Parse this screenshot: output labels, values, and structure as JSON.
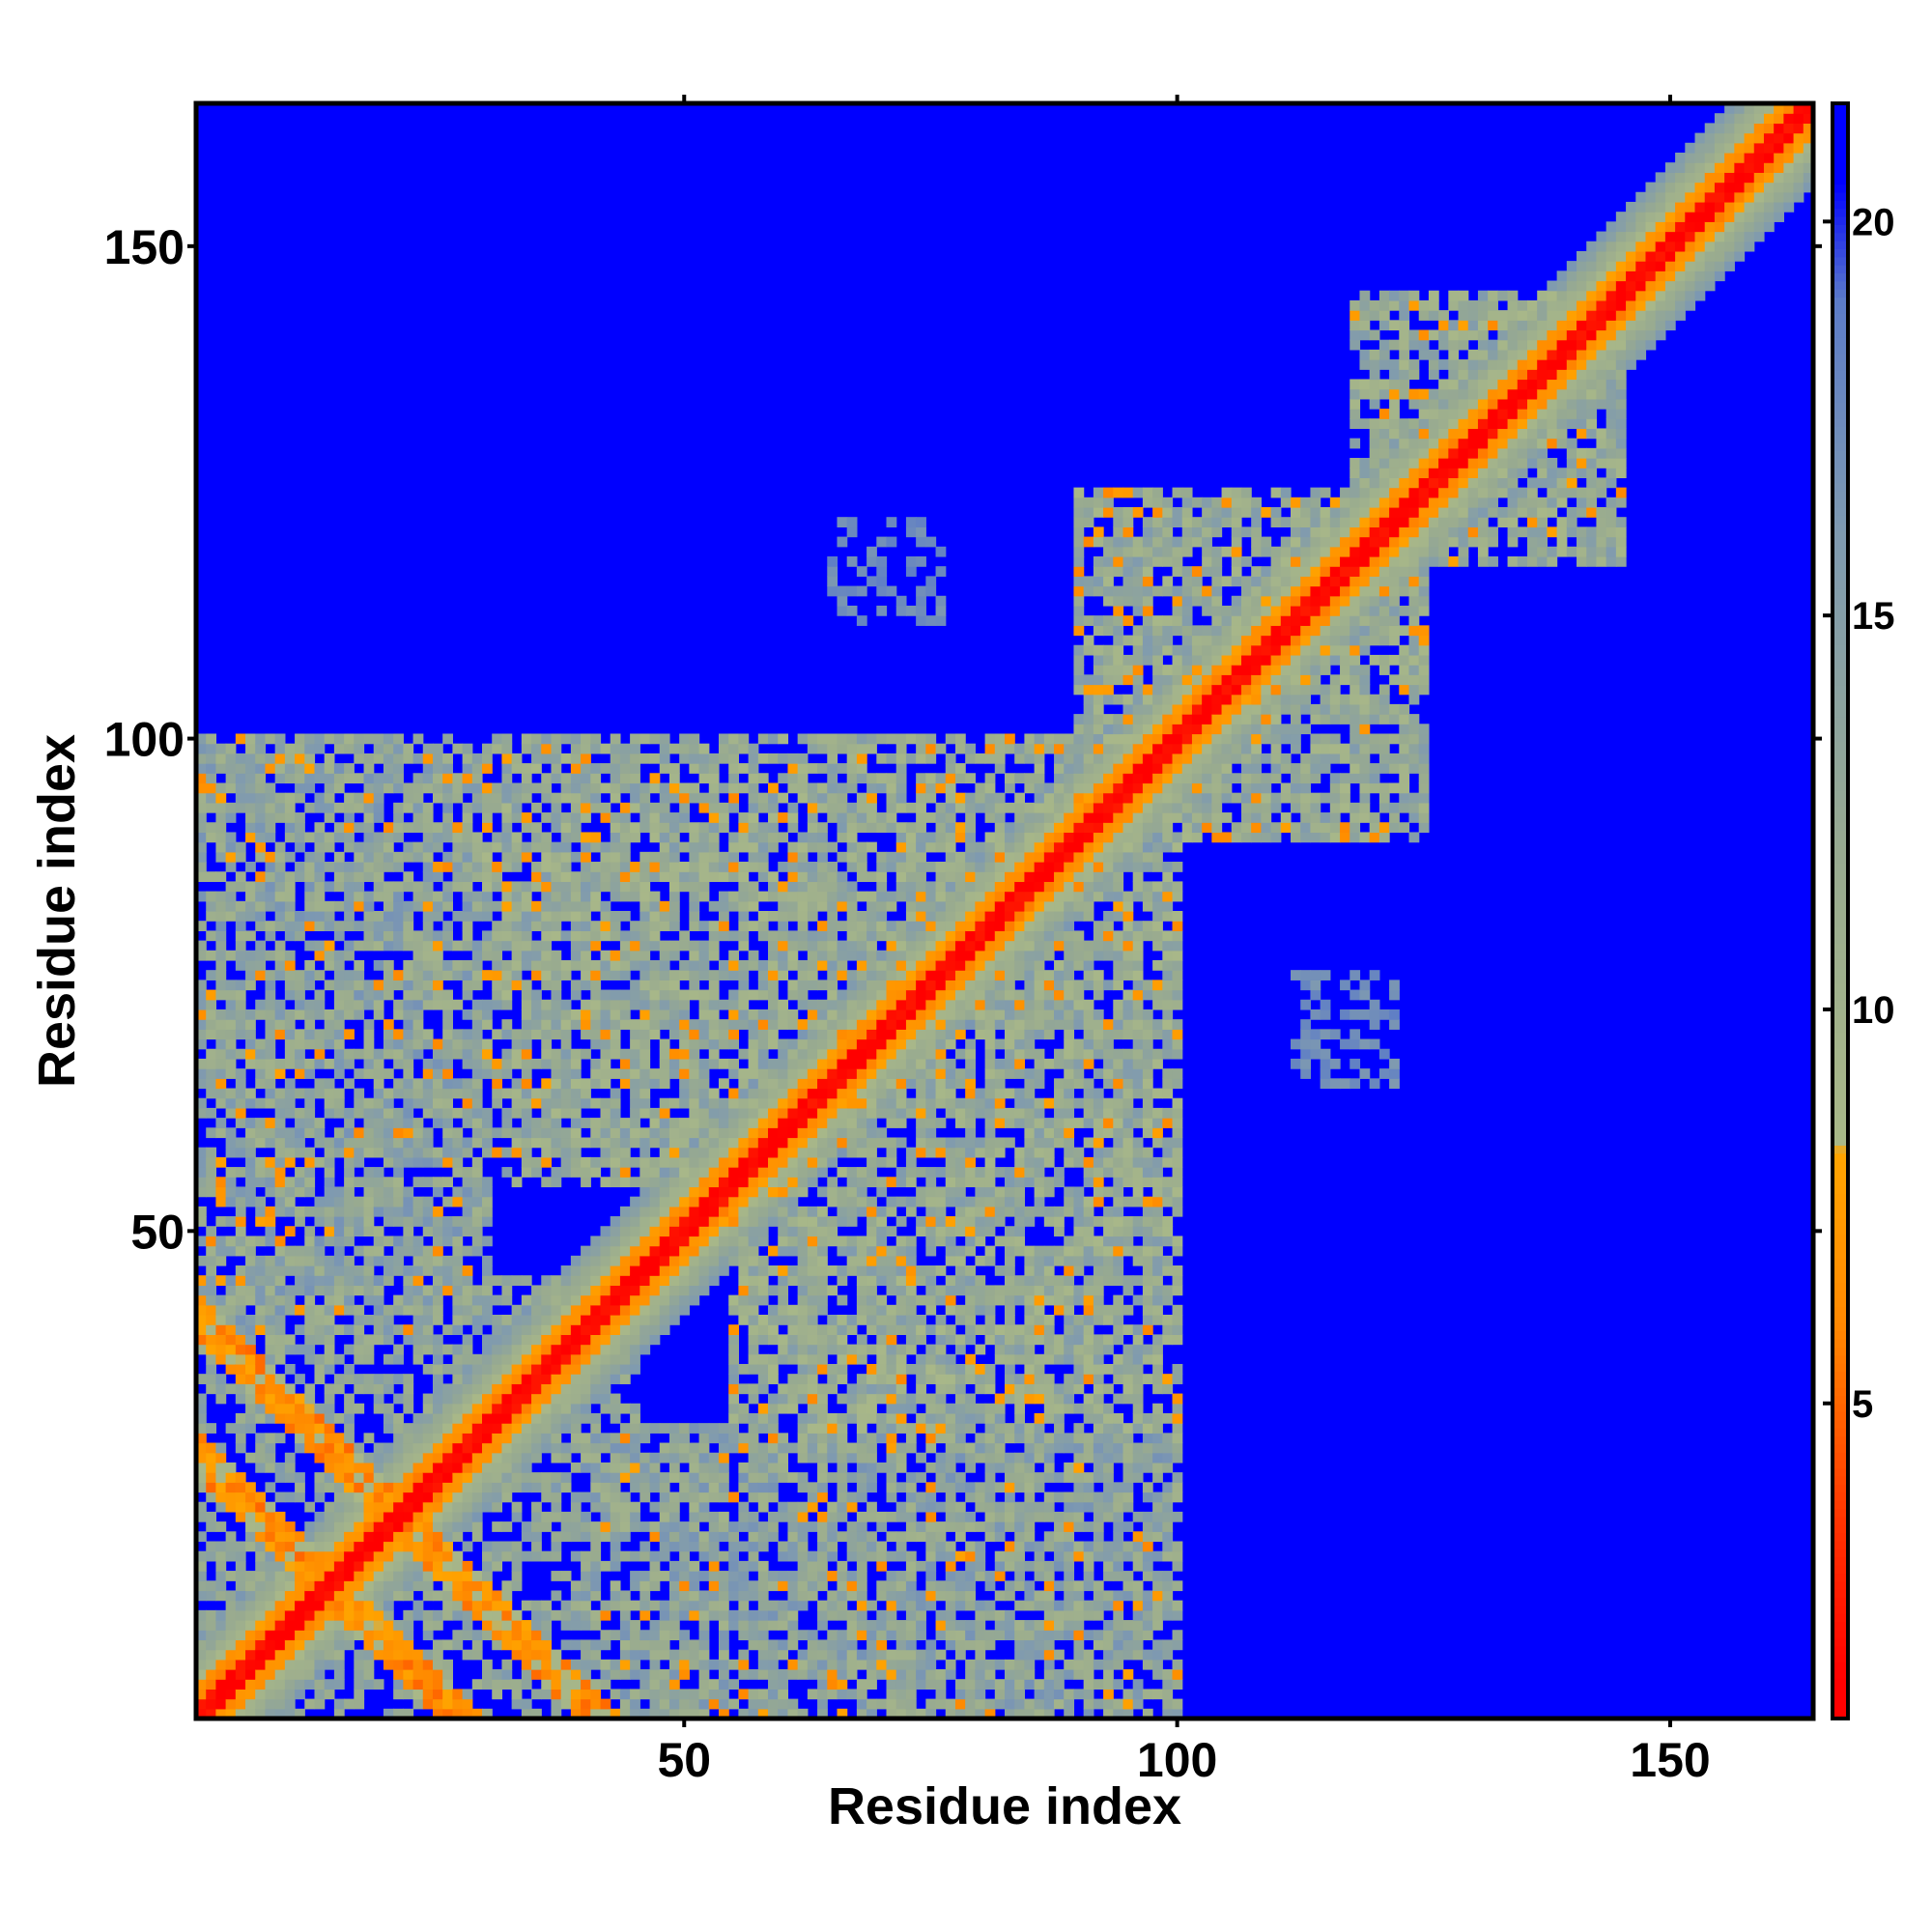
{
  "chart_data": {
    "type": "heatmap",
    "title": "",
    "xlabel": "Residue index",
    "ylabel": "Residue index",
    "xlim": [
      1,
      164
    ],
    "ylim": [
      1,
      164
    ],
    "n_residues": 164,
    "x_ticks": [
      50,
      100,
      150
    ],
    "y_ticks": [
      50,
      100,
      150
    ],
    "colorbar": {
      "ticks": [
        5,
        10,
        15,
        20
      ],
      "range": [
        1,
        21.5
      ],
      "stops": [
        {
          "value": 1.5,
          "color": "#ff0000"
        },
        {
          "value": 3.5,
          "color": "#ff3300"
        },
        {
          "value": 6.0,
          "color": "#ff8800"
        },
        {
          "value": 8.2,
          "color": "#ffa500"
        },
        {
          "value": 8.3,
          "color": "#a9b888"
        },
        {
          "value": 12.0,
          "color": "#98aa90"
        },
        {
          "value": 16.0,
          "color": "#7f9ab0"
        },
        {
          "value": 19.0,
          "color": "#5c7cc8"
        },
        {
          "value": 20.5,
          "color": "#0000ff"
        }
      ],
      "background_color": "#0000ff"
    },
    "value_description": "Symmetric residue-residue distance map; near-diagonal values are small (red/orange), distant pairs large (blue)",
    "contact_regions": [
      {
        "x": [
          1,
          45
        ],
        "y": [
          1,
          45
        ],
        "pattern": "cross",
        "level": 7
      },
      {
        "x": [
          1,
          24
        ],
        "y": [
          48,
          97
        ],
        "pattern": "patch",
        "level": 13
      },
      {
        "x": [
          30,
          60
        ],
        "y": [
          55,
          100
        ],
        "pattern": "patch",
        "level": 12
      },
      {
        "x": [
          40,
          100
        ],
        "y": [
          1,
          30
        ],
        "pattern": "patch",
        "level": 13
      },
      {
        "x": [
          55,
          85
        ],
        "y": [
          35,
          60
        ],
        "pattern": "patch",
        "level": 12
      },
      {
        "x": [
          65,
          100
        ],
        "y": [
          60,
          100
        ],
        "pattern": "patch",
        "level": 12
      },
      {
        "x": [
          90,
          125
        ],
        "y": [
          95,
          125
        ],
        "pattern": "patch",
        "level": 12
      },
      {
        "x": [
          118,
          145
        ],
        "y": [
          118,
          142
        ],
        "pattern": "patch",
        "level": 12
      },
      {
        "x": [
          88,
          98
        ],
        "y": [
          40,
          50
        ],
        "pattern": "sparse",
        "level": 15
      },
      {
        "x": [
          65,
          75
        ],
        "y": [
          115,
          122
        ],
        "pattern": "sparse",
        "level": 16
      },
      {
        "x": [
          112,
          120
        ],
        "y": [
          66,
          76
        ],
        "pattern": "sparse",
        "level": 16
      }
    ]
  }
}
